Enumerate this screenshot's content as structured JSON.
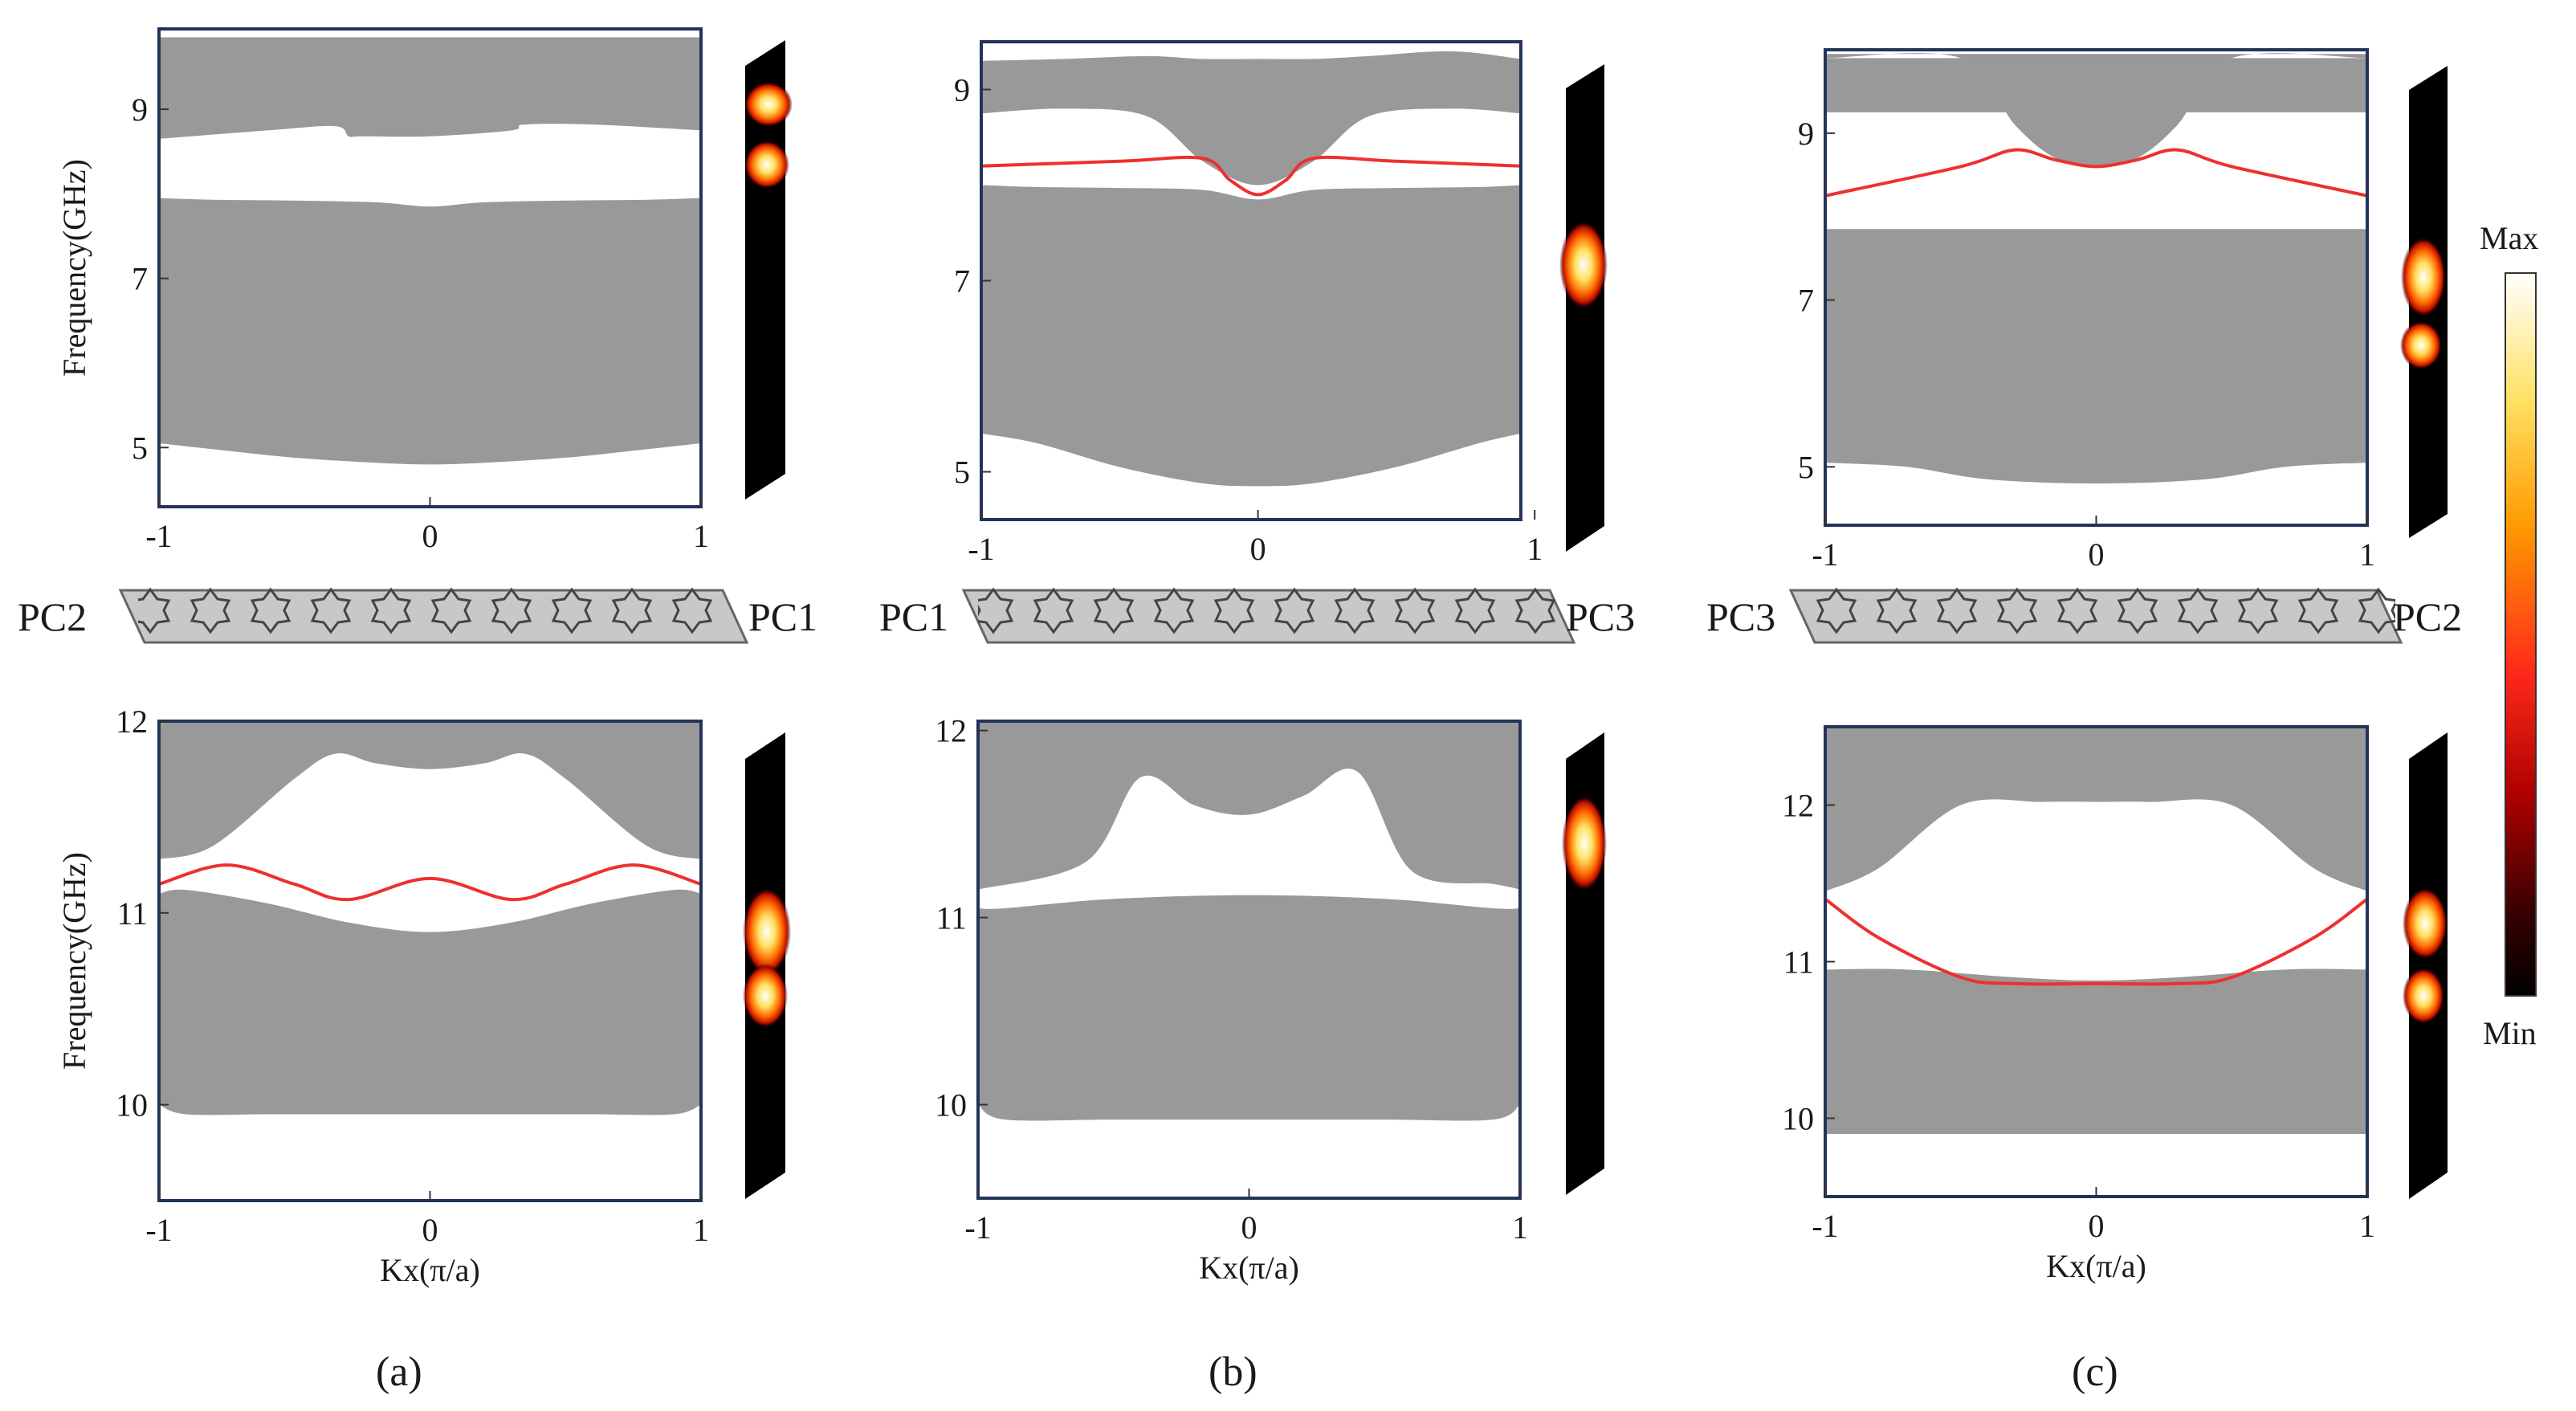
{
  "figure": {
    "panel_labels": [
      "(a)",
      "(b)",
      "(c)"
    ],
    "colorbar": {
      "max_label": "Max",
      "min_label": "Min",
      "colormap": [
        "#ffffff",
        "#ffe060",
        "#ff9a00",
        "#ff2a1a",
        "#b00000",
        "#3a0000",
        "#000000"
      ]
    },
    "interface_strips": [
      {
        "left": "PC2",
        "right": "PC1"
      },
      {
        "left": "PC1",
        "right": "PC3"
      },
      {
        "left": "PC3",
        "right": "PC2"
      }
    ],
    "colors": {
      "band": "#999999",
      "edge_state": "#ee3030",
      "frame": "#24335a"
    }
  },
  "chart_data": [
    {
      "id": "a-top",
      "type": "line",
      "panel": "(a)",
      "xlabel": "",
      "ylabel": "Frequency(GHz)",
      "xlim": [
        -1,
        1
      ],
      "ylim": [
        4.3,
        9.95
      ],
      "xticks": [
        -1,
        0,
        1
      ],
      "xtick_labels": [
        "-1",
        "0",
        "1"
      ],
      "yticks": [
        5,
        7,
        9
      ],
      "ytick_labels": [
        "5",
        "7",
        "9"
      ],
      "bands": [
        {
          "name": "lower bulk band",
          "x": [
            -1,
            -0.8,
            -0.5,
            -0.2,
            0,
            0.2,
            0.5,
            0.8,
            1
          ],
          "lower": [
            5.05,
            4.98,
            4.88,
            4.82,
            4.8,
            4.82,
            4.88,
            4.98,
            5.05
          ],
          "upper": [
            7.95,
            7.93,
            7.92,
            7.9,
            7.85,
            7.9,
            7.92,
            7.93,
            7.95
          ]
        },
        {
          "name": "upper bulk band",
          "x": [
            -1,
            -0.6,
            -0.35,
            -0.3,
            -0.25,
            0,
            0.3,
            0.35,
            0.6,
            1
          ],
          "lower": [
            8.65,
            8.75,
            8.8,
            8.68,
            8.68,
            8.68,
            8.75,
            8.82,
            8.82,
            8.75
          ],
          "upper": [
            9.85,
            9.85,
            9.85,
            9.85,
            9.85,
            9.85,
            9.85,
            9.85,
            9.85,
            9.85
          ]
        }
      ],
      "edge_states": []
    },
    {
      "id": "b-top",
      "type": "line",
      "panel": "(b)",
      "xlabel": "",
      "ylabel": "",
      "xlim": [
        -1,
        0.95
      ],
      "ylim": [
        4.5,
        9.5
      ],
      "xticks": [
        -1,
        0,
        1
      ],
      "xtick_labels": [
        "-1",
        "0",
        "1"
      ],
      "yticks": [
        5,
        7,
        9
      ],
      "ytick_labels": [
        "5",
        "7",
        "9"
      ],
      "bands": [
        {
          "name": "lower bulk band",
          "x": [
            -1,
            -0.8,
            -0.5,
            -0.2,
            0,
            0.2,
            0.5,
            0.8,
            0.95
          ],
          "lower": [
            5.4,
            5.3,
            5.05,
            4.88,
            4.85,
            4.88,
            5.05,
            5.3,
            5.4
          ],
          "upper": [
            8.0,
            7.98,
            7.97,
            7.95,
            7.85,
            7.95,
            7.97,
            7.98,
            8.0
          ]
        },
        {
          "name": "upper bulk band",
          "x": [
            -1,
            -0.7,
            -0.4,
            -0.2,
            0,
            0.2,
            0.4,
            0.7,
            0.95
          ],
          "lower": [
            8.75,
            8.8,
            8.72,
            8.25,
            8.0,
            8.25,
            8.72,
            8.8,
            8.75
          ],
          "upper": [
            9.3,
            9.32,
            9.35,
            9.32,
            9.32,
            9.32,
            9.35,
            9.4,
            9.32
          ]
        }
      ],
      "edge_states": [
        {
          "name": "edge state",
          "x": [
            -1,
            -0.5,
            -0.2,
            -0.1,
            0,
            0.1,
            0.2,
            0.5,
            0.95
          ],
          "y": [
            8.2,
            8.25,
            8.28,
            8.05,
            7.9,
            8.05,
            8.28,
            8.25,
            8.2
          ]
        }
      ]
    },
    {
      "id": "c-top",
      "type": "line",
      "panel": "(c)",
      "xlabel": "",
      "ylabel": "",
      "xlim": [
        -1,
        1
      ],
      "ylim": [
        4.3,
        10.0
      ],
      "xticks": [
        -1,
        0,
        1
      ],
      "xtick_labels": [
        "-1",
        "0",
        "1"
      ],
      "yticks": [
        5,
        7,
        9
      ],
      "ytick_labels": [
        "5",
        "7",
        "9"
      ],
      "bands": [
        {
          "name": "lower bulk band",
          "x": [
            -1,
            -0.7,
            -0.4,
            0,
            0.4,
            0.7,
            1
          ],
          "lower": [
            5.05,
            5.0,
            4.85,
            4.8,
            4.85,
            5.0,
            5.05
          ],
          "upper": [
            7.85,
            7.85,
            7.85,
            7.85,
            7.85,
            7.85,
            7.85
          ]
        },
        {
          "name": "upper bulk band",
          "x": [
            -1,
            -0.5,
            -0.3,
            -0.15,
            0,
            0.15,
            0.3,
            0.5,
            1
          ],
          "lower": [
            9.9,
            9.9,
            9.1,
            8.7,
            8.6,
            8.7,
            9.1,
            9.9,
            9.9
          ],
          "upper": [
            9.95,
            9.95,
            9.95,
            9.95,
            9.95,
            9.95,
            9.95,
            9.95,
            9.95
          ]
        },
        {
          "name": "upper bulk band (lower sheet)",
          "x": [
            -1,
            -0.3,
            -0.15,
            0,
            0.15,
            0.3,
            1
          ],
          "lower": [
            9.25,
            9.25,
            9.25,
            9.25,
            9.25,
            9.25,
            9.25
          ],
          "upper": [
            9.9,
            9.9,
            9.9,
            9.9,
            9.9,
            9.9,
            9.9
          ]
        }
      ],
      "edge_states": [
        {
          "name": "edge state",
          "x": [
            -1,
            -0.5,
            -0.3,
            -0.15,
            0,
            0.15,
            0.3,
            0.5,
            1
          ],
          "y": [
            8.25,
            8.6,
            8.8,
            8.68,
            8.6,
            8.68,
            8.8,
            8.6,
            8.25
          ]
        }
      ]
    },
    {
      "id": "a-bottom",
      "type": "line",
      "panel": "(a)",
      "xlabel": "Kx(π/a)",
      "ylabel": "Frequency(GHz)",
      "xlim": [
        -1,
        1
      ],
      "ylim": [
        9.5,
        12.0
      ],
      "xticks": [
        -1,
        0,
        1
      ],
      "xtick_labels": [
        "-1",
        "0",
        "1"
      ],
      "yticks": [
        10,
        11,
        12
      ],
      "ytick_labels": [
        "10",
        "11",
        "12"
      ],
      "bands": [
        {
          "name": "lower bulk band",
          "x": [
            -1,
            -0.9,
            -0.6,
            -0.3,
            0,
            0.3,
            0.6,
            0.9,
            1
          ],
          "lower": [
            10.0,
            9.95,
            9.95,
            9.95,
            9.95,
            9.95,
            9.95,
            9.95,
            10.0
          ],
          "upper": [
            11.1,
            11.12,
            11.05,
            10.95,
            10.9,
            10.95,
            11.05,
            11.12,
            11.1
          ]
        },
        {
          "name": "upper bulk band",
          "x": [
            -1,
            -0.8,
            -0.5,
            -0.35,
            -0.2,
            0,
            0.2,
            0.35,
            0.5,
            0.8,
            1
          ],
          "lower": [
            11.28,
            11.35,
            11.7,
            11.83,
            11.78,
            11.75,
            11.78,
            11.83,
            11.7,
            11.35,
            11.28
          ],
          "upper": [
            12.0,
            12.0,
            12.0,
            12.0,
            12.0,
            12.0,
            12.0,
            12.0,
            12.0,
            12.0,
            12.0
          ]
        }
      ],
      "edge_states": [
        {
          "name": "edge state",
          "x": [
            -1,
            -0.75,
            -0.5,
            -0.3,
            0,
            0.3,
            0.5,
            0.75,
            1
          ],
          "y": [
            11.15,
            11.25,
            11.15,
            11.07,
            11.18,
            11.07,
            11.15,
            11.25,
            11.15
          ]
        }
      ]
    },
    {
      "id": "b-bottom",
      "type": "line",
      "panel": "(b)",
      "xlabel": "Kx(π/a)",
      "ylabel": "",
      "xlim": [
        -1,
        1
      ],
      "ylim": [
        9.5,
        12.05
      ],
      "xticks": [
        -1,
        0,
        1
      ],
      "xtick_labels": [
        "-1",
        "0",
        "1"
      ],
      "yticks": [
        10,
        11,
        12
      ],
      "ytick_labels": [
        "10",
        "11",
        "12"
      ],
      "bands": [
        {
          "name": "lower bulk band",
          "x": [
            -1,
            -0.9,
            -0.5,
            0,
            0.5,
            0.9,
            1
          ],
          "lower": [
            10.0,
            9.92,
            9.92,
            9.92,
            9.92,
            9.92,
            10.0
          ],
          "upper": [
            11.05,
            11.05,
            11.1,
            11.12,
            11.1,
            11.05,
            11.05
          ]
        },
        {
          "name": "upper bulk band",
          "x": [
            -1,
            -0.6,
            -0.4,
            -0.2,
            0,
            0.2,
            0.4,
            0.6,
            0.9,
            1
          ],
          "lower": [
            11.15,
            11.3,
            11.75,
            11.6,
            11.55,
            11.65,
            11.78,
            11.25,
            11.18,
            11.15
          ],
          "upper": [
            12.05,
            12.05,
            12.05,
            12.05,
            12.05,
            12.05,
            12.05,
            12.05,
            12.05,
            12.05
          ]
        }
      ],
      "edge_states": []
    },
    {
      "id": "c-bottom",
      "type": "line",
      "panel": "(c)",
      "xlabel": "Kx(π/a)",
      "ylabel": "",
      "xlim": [
        -1,
        1
      ],
      "ylim": [
        9.5,
        12.5
      ],
      "xticks": [
        -1,
        0,
        1
      ],
      "xtick_labels": [
        "-1",
        "0",
        "1"
      ],
      "yticks": [
        10,
        11,
        12
      ],
      "ytick_labels": [
        "10",
        "11",
        "12"
      ],
      "bands": [
        {
          "name": "lower bulk band",
          "x": [
            -1,
            -0.7,
            -0.3,
            0,
            0.3,
            0.7,
            1
          ],
          "lower": [
            9.9,
            9.9,
            9.9,
            9.9,
            9.9,
            9.9,
            9.9
          ],
          "upper": [
            10.95,
            10.95,
            10.9,
            10.88,
            10.9,
            10.95,
            10.95
          ]
        },
        {
          "name": "upper bulk band",
          "x": [
            -1,
            -0.8,
            -0.5,
            -0.2,
            0,
            0.2,
            0.5,
            0.8,
            1
          ],
          "lower": [
            11.45,
            11.6,
            12.0,
            12.02,
            12.02,
            12.02,
            12.0,
            11.6,
            11.45
          ],
          "upper": [
            12.5,
            12.5,
            12.5,
            12.5,
            12.5,
            12.5,
            12.5,
            12.5,
            12.5
          ]
        }
      ],
      "edge_states": [
        {
          "name": "edge state",
          "x": [
            -1,
            -0.8,
            -0.5,
            -0.3,
            0,
            0.3,
            0.5,
            0.8,
            1
          ],
          "y": [
            11.4,
            11.15,
            10.9,
            10.86,
            10.86,
            10.86,
            10.9,
            11.15,
            11.4
          ]
        }
      ]
    }
  ]
}
